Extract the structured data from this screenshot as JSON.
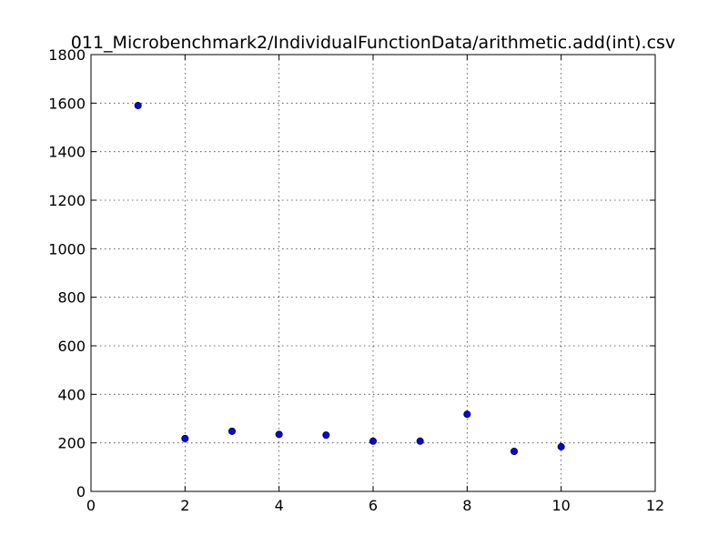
{
  "chart_data": {
    "type": "scatter",
    "title": "011_Microbenchmark2/IndividualFunctionData/arithmetic.add(int).csv",
    "xlabel": "",
    "ylabel": "",
    "xlim": [
      0,
      12
    ],
    "ylim": [
      0,
      1800
    ],
    "xticks": [
      0,
      2,
      4,
      6,
      8,
      10,
      12
    ],
    "yticks": [
      0,
      200,
      400,
      600,
      800,
      1000,
      1200,
      1400,
      1600,
      1800
    ],
    "grid": true,
    "series": [
      {
        "x": [
          1,
          2,
          3,
          4,
          5,
          6,
          7,
          8,
          9,
          10
        ],
        "y": [
          1590,
          218,
          248,
          235,
          232,
          207,
          207,
          318,
          165,
          184
        ]
      }
    ],
    "colors": {
      "point_fill": "#0000ff",
      "point_edge": "#000000"
    }
  }
}
